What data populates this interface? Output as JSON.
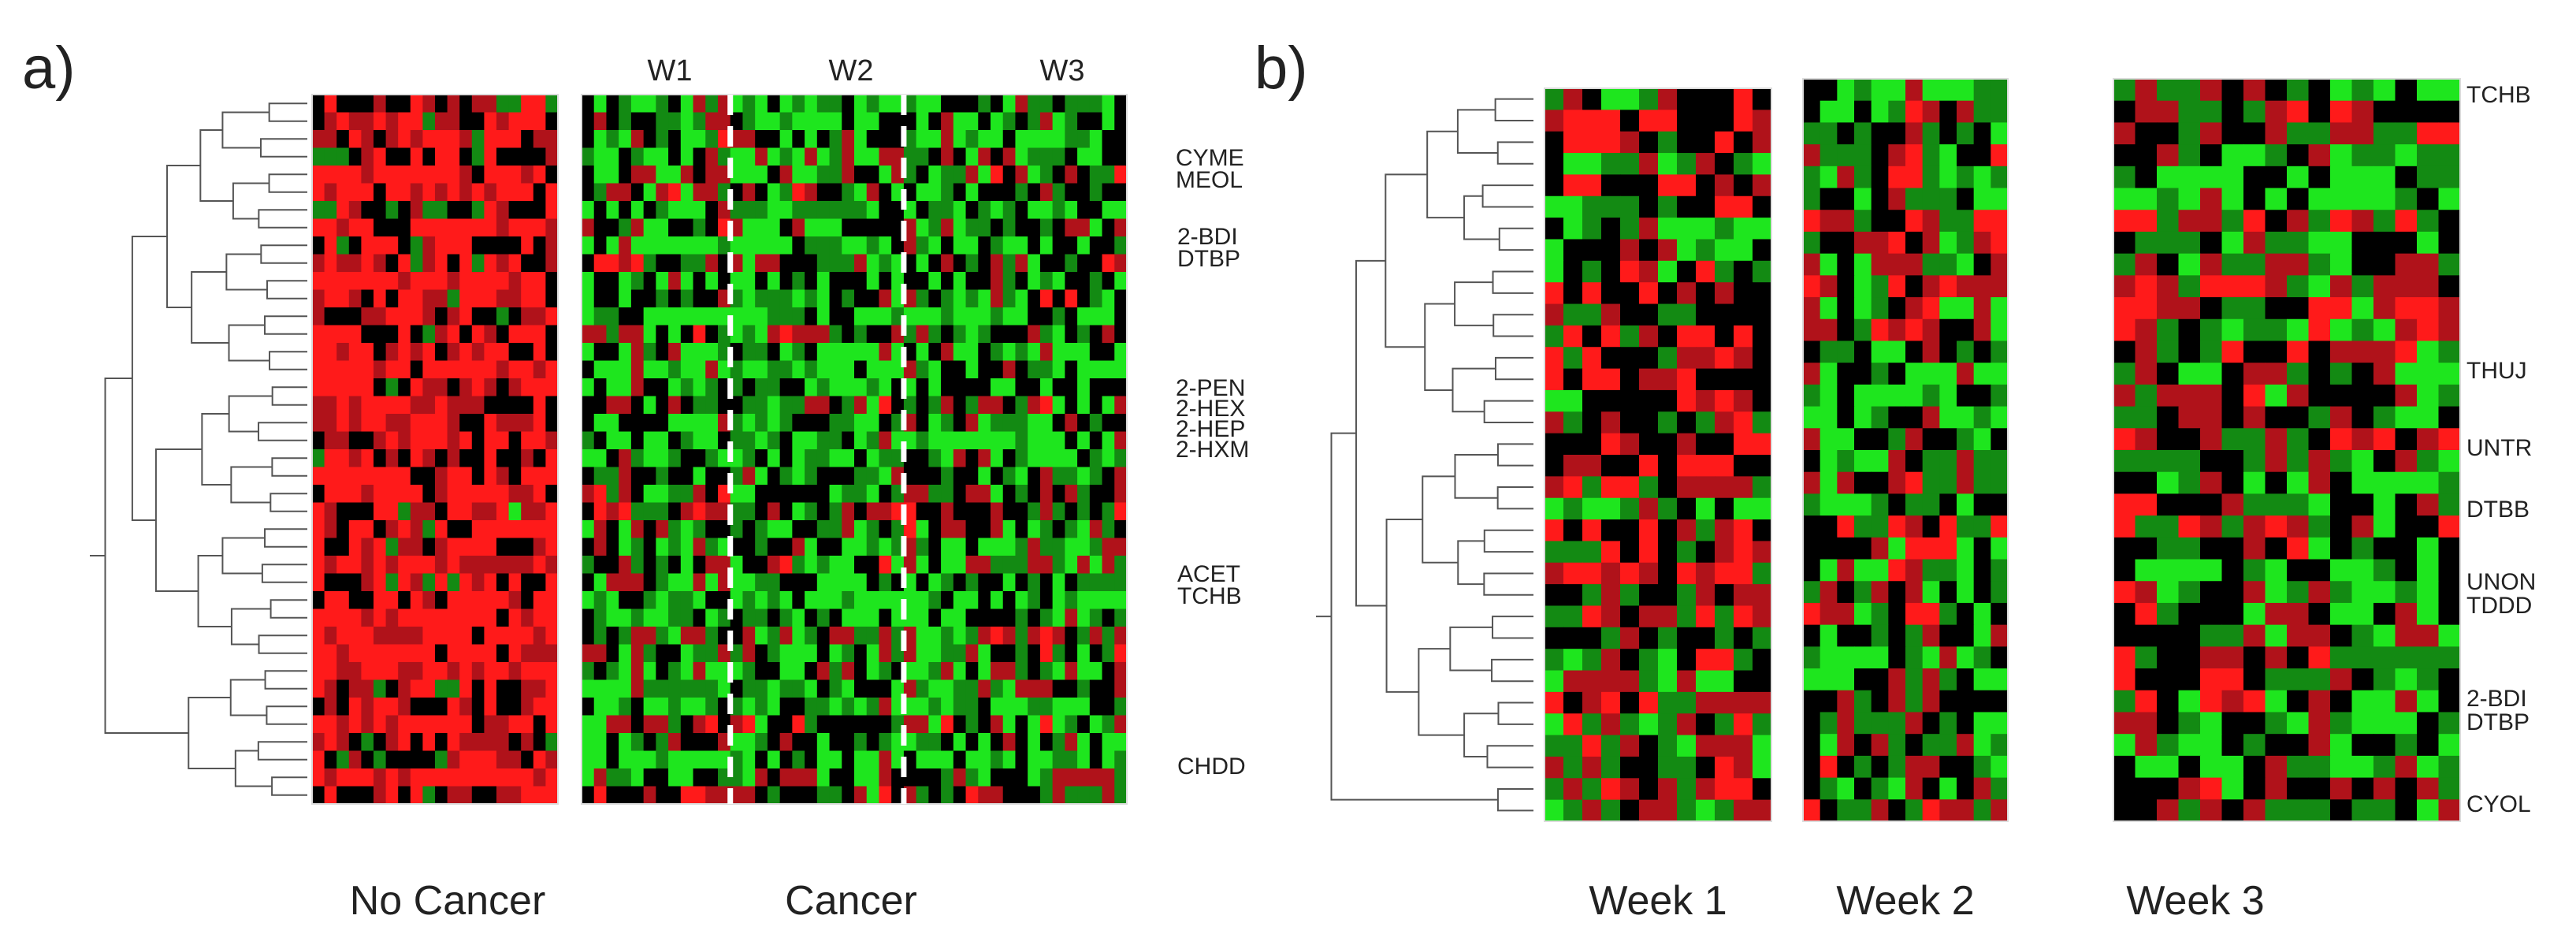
{
  "panels": {
    "a": {
      "letter": "a)"
    },
    "b": {
      "letter": "b)"
    }
  },
  "colors": {
    "up": "#ff1a1a",
    "mid_up": "#b0121a",
    "zero": "#000000",
    "mid_down": "#138a13",
    "down": "#1ee61e"
  },
  "chart_data": [
    {
      "type": "heatmap",
      "panel": "a",
      "groups": [
        {
          "label": "No Cancer",
          "columns": 20,
          "seed": 11,
          "bias": 0.55
        },
        {
          "label": "Cancer",
          "columns": 44,
          "seed": 23,
          "bias": -0.25,
          "subgroups": [
            {
              "label": "W1",
              "columns": 12
            },
            {
              "label": "W2",
              "columns": 14
            },
            {
              "label": "W3",
              "columns": 18
            }
          ]
        }
      ],
      "rows": 40,
      "row_labels": [
        "CYME",
        "MEOL",
        "2-BDI",
        "DTBP",
        "2-PEN",
        "2-HEX",
        "2-HEP",
        "2-HXM",
        "ACET",
        "TCHB",
        "CHDD"
      ],
      "dendrogram_leaves": 40
    },
    {
      "type": "heatmap",
      "panel": "b",
      "groups": [
        {
          "label": "Week 1",
          "columns": 12,
          "seed": 41,
          "bias": 0.05
        },
        {
          "label": "Week 2",
          "columns": 12,
          "seed": 57,
          "bias": -0.15
        },
        {
          "label": "Week 3",
          "columns": 16,
          "seed": 73,
          "bias": -0.1
        }
      ],
      "rows": 34,
      "row_labels": [
        "TCHB",
        "THUJ",
        "UNTR",
        "DTBB",
        "UNON",
        "TDDD",
        "2-BDI",
        "DTBP",
        "CYOL"
      ],
      "dendrogram_leaves": 34
    }
  ]
}
